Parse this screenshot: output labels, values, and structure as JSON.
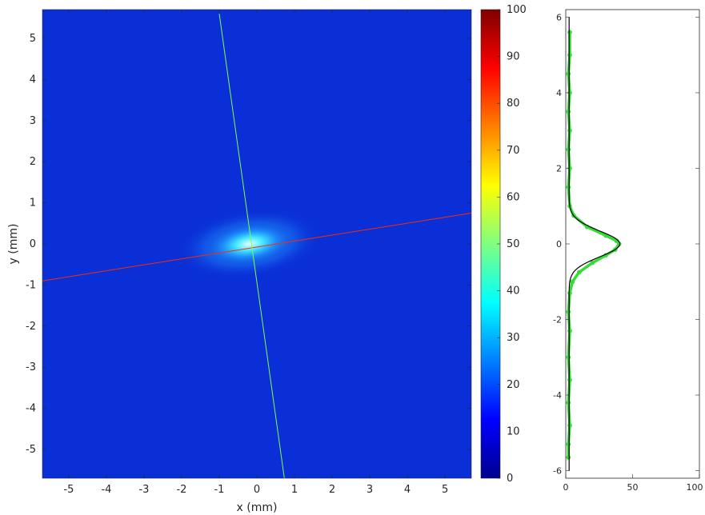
{
  "chart_data": [
    {
      "type": "heatmap",
      "xlabel": "x (mm)",
      "ylabel": "y (mm)",
      "xlim": [
        -5.7,
        5.7
      ],
      "ylim": [
        -5.7,
        5.7
      ],
      "xticks": [
        "-5",
        "-4",
        "-3",
        "-2",
        "-1",
        "0",
        "1",
        "2",
        "3",
        "4",
        "5"
      ],
      "yticks": [
        "5",
        "4",
        "3",
        "2",
        "1",
        "0",
        "-1",
        "-2",
        "-3",
        "-4",
        "-5"
      ],
      "colormap": "jet",
      "background_level": 5,
      "spot": {
        "center_x": -0.2,
        "center_y": 0.0,
        "peak": 40,
        "sigma_major": 0.75,
        "sigma_minor": 0.32,
        "tilt_deg": 8
      },
      "lines": [
        {
          "name": "red-axis",
          "color": "#ff2a00",
          "points": [
            [
              -5.7,
              -0.9
            ],
            [
              5.7,
              0.75
            ]
          ]
        },
        {
          "name": "green-axis",
          "color": "#7dff3f",
          "points": [
            [
              -1.0,
              5.6
            ],
            [
              0.73,
              -5.7
            ]
          ]
        }
      ],
      "grid": false
    },
    {
      "type": "colorbar",
      "range": [
        0,
        100
      ],
      "ticks": [
        "100",
        "90",
        "80",
        "70",
        "60",
        "50",
        "40",
        "30",
        "20",
        "10",
        "0"
      ],
      "colormap": "jet"
    },
    {
      "type": "scatter",
      "orientation": "horizontal-profile",
      "xlim": [
        0,
        100
      ],
      "ylim": [
        -6.2,
        6.2
      ],
      "xticks": [
        "0",
        "50",
        "100"
      ],
      "yticks": [
        "6",
        "4",
        "2",
        "0",
        "-2",
        "-4",
        "-6"
      ],
      "series": [
        {
          "color": "#33dd33",
          "points": [
            [
              3,
              5.6
            ],
            [
              3,
              5.0
            ],
            [
              2,
              4.5
            ],
            [
              3,
              4.0
            ],
            [
              2,
              3.5
            ],
            [
              3,
              3.0
            ],
            [
              2,
              2.5
            ],
            [
              3,
              2.0
            ],
            [
              2,
              1.5
            ],
            [
              3,
              1.0
            ],
            [
              6,
              0.75
            ],
            [
              16,
              0.45
            ],
            [
              30,
              0.22
            ],
            [
              38,
              0.08
            ],
            [
              40,
              0.0
            ],
            [
              37,
              -0.15
            ],
            [
              30,
              -0.3
            ],
            [
              20,
              -0.5
            ],
            [
              10,
              -0.75
            ],
            [
              5,
              -1.0
            ],
            [
              3,
              -1.3
            ],
            [
              2,
              -1.8
            ],
            [
              3,
              -2.3
            ],
            [
              2,
              -3.0
            ],
            [
              3,
              -3.6
            ],
            [
              2,
              -4.2
            ],
            [
              3,
              -4.8
            ],
            [
              2,
              -5.3
            ],
            [
              2,
              -5.65
            ]
          ]
        },
        {
          "color": "#000000",
          "fit": {
            "amplitude": 38,
            "center": 0.0,
            "sigma": 0.34,
            "offset": 2.5
          }
        }
      ],
      "grid": false
    }
  ]
}
